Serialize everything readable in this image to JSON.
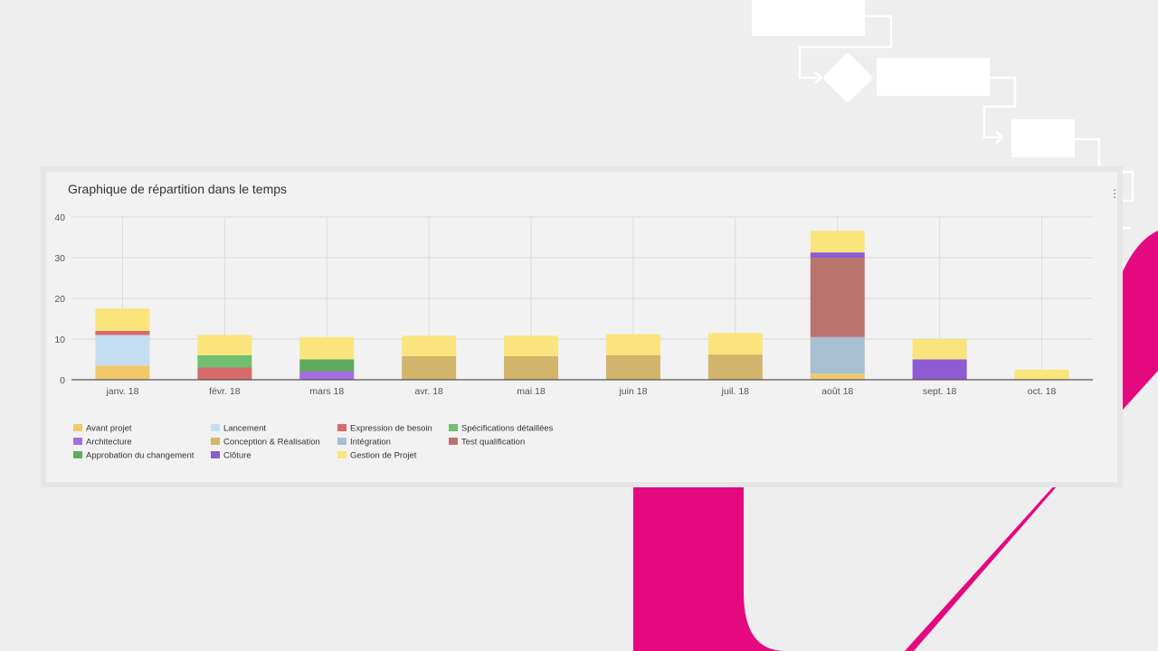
{
  "chart_data": {
    "type": "bar",
    "stacked": true,
    "title": "Graphique de répartition dans le temps",
    "categories": [
      "janv. 18",
      "févr. 18",
      "mars 18",
      "avr. 18",
      "mai 18",
      "juin 18",
      "juil. 18",
      "août 18",
      "sept. 18",
      "oct. 18"
    ],
    "ylim": [
      0,
      40
    ],
    "yticks": [
      0,
      10,
      20,
      30,
      40
    ],
    "grid": true,
    "legend_position": "bottom",
    "series": [
      {
        "name": "Avant projet",
        "color": "#f0c96c",
        "values": [
          3.5,
          0,
          0,
          0,
          0,
          0,
          0,
          1.5,
          0,
          0
        ]
      },
      {
        "name": "Lancement",
        "color": "#c5ddf1",
        "values": [
          7.5,
          0,
          0,
          0,
          0,
          0,
          0,
          0,
          0,
          0
        ]
      },
      {
        "name": "Expression de besoin",
        "color": "#d76b6b",
        "values": [
          1,
          3,
          0,
          0,
          0,
          0,
          0,
          0,
          0,
          0
        ]
      },
      {
        "name": "Spécifications détaillées",
        "color": "#6fbf6f",
        "values": [
          0,
          3,
          0,
          0,
          0,
          0,
          0,
          0,
          0,
          0
        ]
      },
      {
        "name": "Architecture",
        "color": "#a66de0",
        "values": [
          0,
          0,
          2,
          0,
          0,
          0,
          0,
          0,
          0,
          0
        ]
      },
      {
        "name": "Conception & Réalisation",
        "color": "#d2b46c",
        "values": [
          0,
          0,
          0,
          5.8,
          5.8,
          6,
          6.2,
          0,
          0,
          0
        ]
      },
      {
        "name": "Intégration",
        "color": "#a8bfd1",
        "values": [
          0,
          0,
          0,
          0,
          0,
          0,
          0,
          9,
          0,
          0
        ]
      },
      {
        "name": "Test qualification",
        "color": "#b9736d",
        "values": [
          0,
          0,
          0,
          0,
          0,
          0,
          0,
          19.5,
          0,
          0
        ]
      },
      {
        "name": "Approbation du changement",
        "color": "#5fa95f",
        "values": [
          0,
          0,
          3,
          0,
          0,
          0,
          0,
          0,
          0,
          0
        ]
      },
      {
        "name": "Clôture",
        "color": "#8e5bd0",
        "values": [
          0,
          0,
          0,
          0,
          0,
          0,
          0,
          1.3,
          5,
          0
        ]
      },
      {
        "name": "Gestion de Projet",
        "color": "#f9e57c",
        "values": [
          5.5,
          5,
          5.5,
          5,
          5,
          5.2,
          5.3,
          5.3,
          5,
          2.5
        ]
      }
    ]
  },
  "decor": {
    "accent": "#e5097f",
    "flow_box": "#ffffff",
    "flow_line": "#ffffff"
  }
}
